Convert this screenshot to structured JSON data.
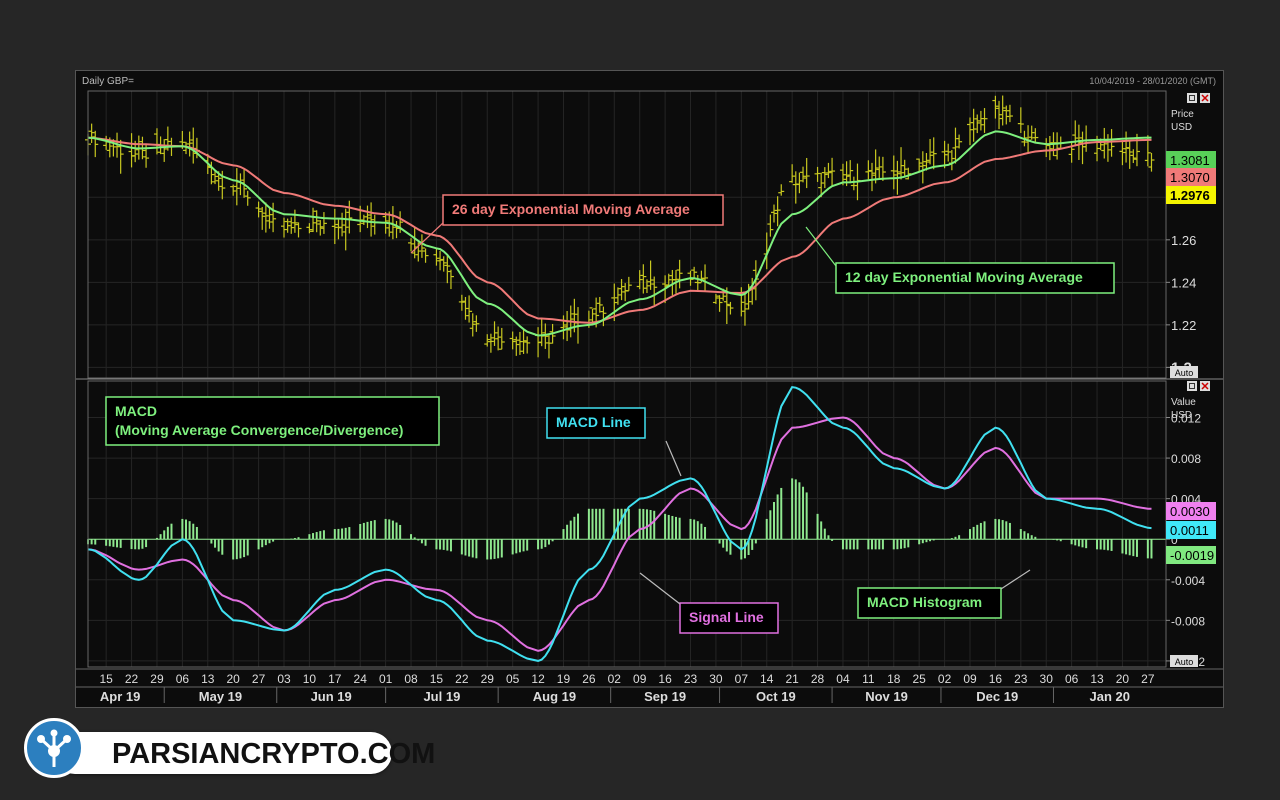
{
  "header": {
    "symbol": "Daily GBP=",
    "date_range": "10/04/2019 - 28/01/2020 (GMT)"
  },
  "colors": {
    "background": "#0c0c0c",
    "price_bar": "#c8c820",
    "ema12": "#7ef07e",
    "ema26": "#f07a78",
    "macd_line": "#40e0f0",
    "signal_line": "#e070e0",
    "histogram": "#8fe88f"
  },
  "price_panel": {
    "axis_title_1": "Price",
    "axis_title_2": "USD",
    "ticks": [
      "1.28",
      "1.26",
      "1.24",
      "1.22",
      "1.2"
    ],
    "badges": [
      {
        "text": "1.3081",
        "bg": "#58d058",
        "fg": "#000000"
      },
      {
        "text": "1.3070",
        "bg": "#f07a78",
        "fg": "#000000"
      },
      {
        "text": "1.2976",
        "bg": "#f4f400",
        "fg": "#000000"
      }
    ],
    "auto_label": "Auto",
    "annotations": {
      "ema26": "26 day Exponential Moving Average",
      "ema12": "12 day Exponential Moving Average"
    }
  },
  "macd_panel": {
    "axis_title_1": "Value",
    "axis_title_2": "USD",
    "ticks": [
      "0.012",
      "0.008",
      "0.004",
      "0",
      "-0.004",
      "-0.008",
      "-0.012"
    ],
    "badges": [
      {
        "text": "0.0030",
        "bg": "#f080f0",
        "fg": "#000000"
      },
      {
        "text": "0.0011",
        "bg": "#40e8f8",
        "fg": "#000000"
      },
      {
        "text": "-0.0019",
        "bg": "#80e880",
        "fg": "#000000"
      }
    ],
    "auto_label": "Auto",
    "annotations": {
      "title_1": "MACD",
      "title_2": "(Moving Average Convergence/Divergence)",
      "macd_line": "MACD Line",
      "signal_line": "Signal Line",
      "histogram": "MACD Histogram"
    }
  },
  "x_axis": {
    "day_ticks": [
      "15",
      "22",
      "29",
      "06",
      "13",
      "20",
      "27",
      "03",
      "10",
      "17",
      "24",
      "01",
      "08",
      "15",
      "22",
      "29",
      "05",
      "12",
      "19",
      "26",
      "02",
      "09",
      "16",
      "23",
      "30",
      "07",
      "14",
      "21",
      "28",
      "04",
      "11",
      "18",
      "25",
      "02",
      "09",
      "16",
      "23",
      "30",
      "06",
      "13",
      "20",
      "27"
    ],
    "month_labels": [
      "Apr 19",
      "May 19",
      "Jun 19",
      "Jul 19",
      "Aug 19",
      "Sep 19",
      "Oct 19",
      "Nov 19",
      "Dec 19",
      "Jan 20"
    ]
  },
  "chart_data": [
    {
      "type": "line",
      "subtype": "ohlc_bars_with_moving_averages",
      "title": "Daily GBP=",
      "ylabel": "Price USD",
      "ylim": [
        1.195,
        1.33
      ],
      "x": [
        "2019-04-10",
        "2019-04-24",
        "2019-05-06",
        "2019-05-20",
        "2019-06-03",
        "2019-06-17",
        "2019-07-01",
        "2019-07-15",
        "2019-07-29",
        "2019-08-12",
        "2019-08-26",
        "2019-09-09",
        "2019-09-23",
        "2019-10-07",
        "2019-10-21",
        "2019-11-04",
        "2019-11-18",
        "2019-12-02",
        "2019-12-16",
        "2019-12-30",
        "2020-01-13",
        "2020-01-28"
      ],
      "series": [
        {
          "name": "Price",
          "values": [
            1.308,
            1.3,
            1.305,
            1.285,
            1.265,
            1.268,
            1.27,
            1.252,
            1.215,
            1.212,
            1.225,
            1.24,
            1.242,
            1.228,
            1.288,
            1.29,
            1.292,
            1.3,
            1.32,
            1.305,
            1.305,
            1.298
          ]
        },
        {
          "name": "12 day Exponential Moving Average",
          "values": [
            1.308,
            1.303,
            1.304,
            1.288,
            1.272,
            1.27,
            1.268,
            1.256,
            1.23,
            1.215,
            1.22,
            1.232,
            1.242,
            1.234,
            1.272,
            1.287,
            1.289,
            1.295,
            1.311,
            1.305,
            1.307,
            1.3081
          ]
        },
        {
          "name": "26 day Exponential Moving Average",
          "values": [
            1.308,
            1.305,
            1.304,
            1.295,
            1.282,
            1.276,
            1.272,
            1.262,
            1.24,
            1.223,
            1.221,
            1.227,
            1.236,
            1.235,
            1.252,
            1.27,
            1.28,
            1.287,
            1.298,
            1.302,
            1.306,
            1.307
          ]
        }
      ]
    },
    {
      "type": "line",
      "subtype": "macd_with_histogram",
      "title": "MACD",
      "ylabel": "Value USD",
      "ylim": [
        -0.0126,
        0.0156
      ],
      "x": [
        "2019-04-10",
        "2019-04-24",
        "2019-05-06",
        "2019-05-20",
        "2019-06-03",
        "2019-06-17",
        "2019-07-01",
        "2019-07-15",
        "2019-07-29",
        "2019-08-12",
        "2019-08-26",
        "2019-09-09",
        "2019-09-23",
        "2019-10-07",
        "2019-10-21",
        "2019-11-04",
        "2019-11-18",
        "2019-12-02",
        "2019-12-16",
        "2019-12-30",
        "2020-01-13",
        "2020-01-28"
      ],
      "series": [
        {
          "name": "MACD Line",
          "values": [
            -0.001,
            -0.004,
            0.0,
            -0.008,
            -0.009,
            -0.005,
            -0.003,
            -0.006,
            -0.01,
            -0.012,
            -0.003,
            0.004,
            0.006,
            -0.001,
            0.015,
            0.011,
            0.007,
            0.005,
            0.011,
            0.004,
            0.003,
            0.0011
          ]
        },
        {
          "name": "Signal Line",
          "values": [
            -0.001,
            -0.003,
            -0.002,
            -0.006,
            -0.009,
            -0.006,
            -0.004,
            -0.005,
            -0.008,
            -0.011,
            -0.006,
            0.001,
            0.005,
            0.001,
            0.011,
            0.012,
            0.008,
            0.005,
            0.009,
            0.004,
            0.004,
            0.003
          ]
        },
        {
          "name": "MACD Histogram",
          "values": [
            -0.0005,
            -0.001,
            0.002,
            -0.002,
            0.0,
            0.001,
            0.002,
            -0.001,
            -0.002,
            -0.001,
            0.003,
            0.003,
            0.002,
            -0.002,
            0.006,
            -0.001,
            -0.001,
            0.0,
            0.002,
            0.0,
            -0.001,
            -0.0019
          ]
        }
      ]
    }
  ],
  "branding": {
    "text": "PARSIANCRYPTO.COM"
  }
}
